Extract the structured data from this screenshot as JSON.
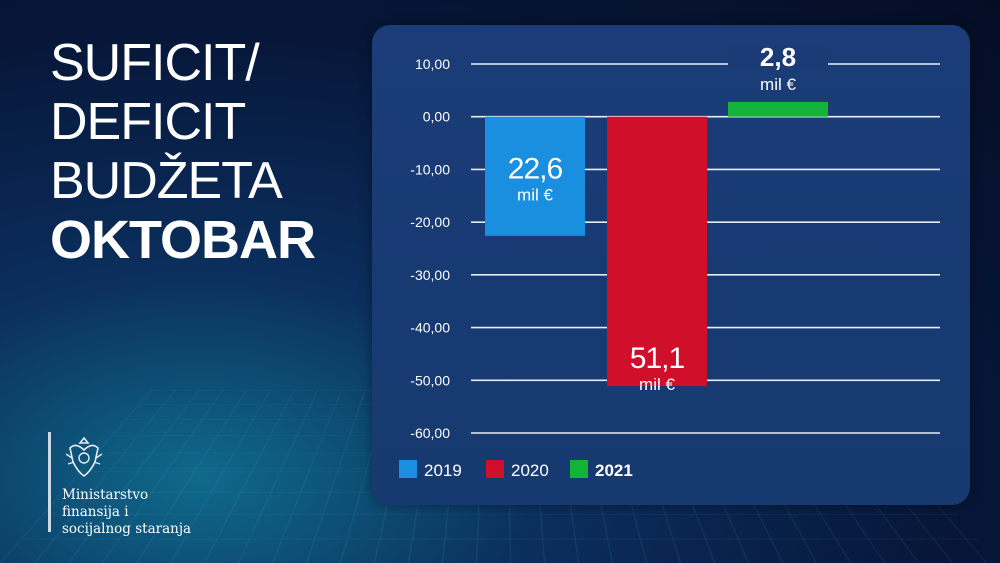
{
  "title": {
    "line1": "SUFICIT/",
    "line2": "DEFICIT",
    "line3": "BUDŽETA",
    "line4": "OKTOBAR"
  },
  "logo": {
    "name_line1": "Ministarstvo",
    "name_line2": "finansija i",
    "name_line3": "socijalnog staranja"
  },
  "chart_data": {
    "type": "bar",
    "categories": [
      "2019",
      "2020",
      "2021"
    ],
    "values": [
      -22.6,
      -51.1,
      2.8
    ],
    "value_labels": [
      "22,6",
      "51,1",
      "2,8"
    ],
    "unit_label": "mil €",
    "colors": [
      "#1a8fe0",
      "#d0102a",
      "#13b33a"
    ],
    "ylim": [
      -60,
      10
    ],
    "yticks": [
      10,
      0,
      -10,
      -20,
      -30,
      -40,
      -50,
      -60
    ],
    "ytick_labels": [
      "10,00",
      "0,00",
      "-10,00",
      "-20,00",
      "-30,00",
      "-40,00",
      "-50,00",
      "-60,00"
    ],
    "grid": true,
    "legend": {
      "placement": "bottom-left",
      "entries": [
        "2019",
        "2020",
        "2021"
      ]
    }
  }
}
